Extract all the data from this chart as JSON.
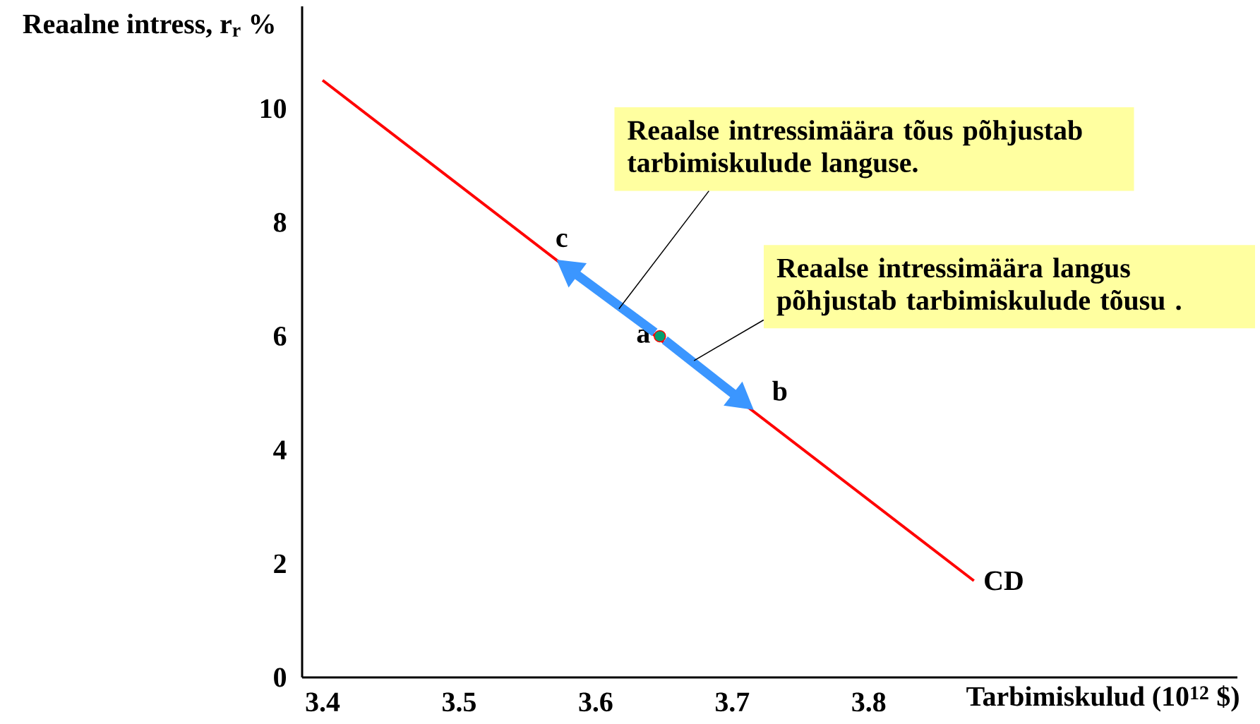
{
  "chart_data": {
    "type": "line",
    "xlabel": "Tarbimiskulud (10$^{12}$ $)",
    "ylabel": "Reaalne intress, r$_{r}$ %",
    "xlim": [
      3.385,
      4.07
    ],
    "ylim": [
      0,
      11.8
    ],
    "xticks": [
      3.4,
      3.5,
      3.6,
      3.7,
      3.8
    ],
    "yticks": [
      0,
      2,
      4,
      6,
      8,
      10
    ],
    "legend": false,
    "series": [
      {
        "name": "CD",
        "color": "#ff0000",
        "x": [
          3.4,
          3.877
        ],
        "values": [
          10.5,
          1.7
        ]
      },
      {
        "type": "scatter",
        "marker": "circle",
        "color": "#00a070",
        "x": [
          3.647
        ],
        "values": [
          6
        ]
      }
    ],
    "annotations": [
      {
        "text": "a",
        "x": 3.647,
        "y": 6
      },
      {
        "text": "b",
        "x": 3.716,
        "y": 4.7
      },
      {
        "text": "c",
        "x": 3.571,
        "y": 7.35
      },
      {
        "text": "Reaalse intressimäära tõus põhjustab tarbimiskulude languse.",
        "x": 3.617,
        "y": 6.48
      },
      {
        "text": "Reaalse intressimäära langus põhjustab tarbimiskulude tõusu .",
        "x": 3.672,
        "y": 5.57
      }
    ]
  }
}
